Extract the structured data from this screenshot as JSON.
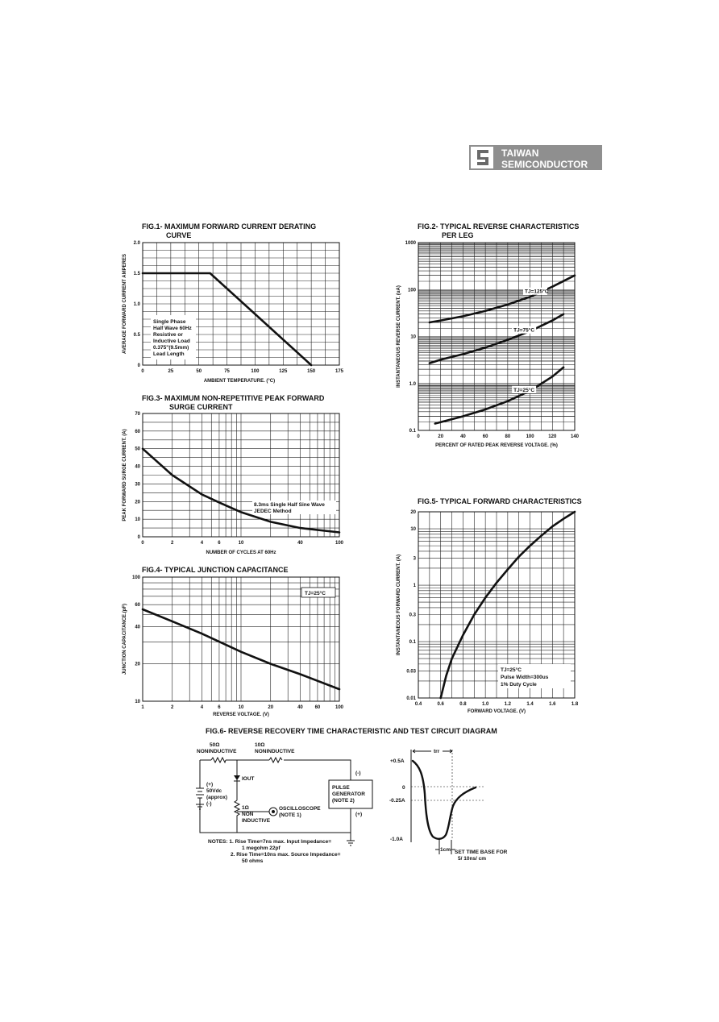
{
  "logo": {
    "line1": "TAIWAN",
    "line2": "SEMICONDUCTOR"
  },
  "fig1": {
    "title1": "FIG.1- MAXIMUM FORWARD CURRENT DERATING",
    "title2": "CURVE",
    "note": [
      "Single Phase",
      "Half Wave 60Hz",
      "Resistive or",
      "Inductive Load",
      "0.375\"(9.5mm)",
      "Lead Length"
    ]
  },
  "fig2": {
    "title1": "FIG.2- TYPICAL REVERSE CHARACTERISTICS",
    "title2": "PER LEG"
  },
  "fig3": {
    "title1": "FIG.3- MAXIMUM NON-REPETITIVE PEAK FORWARD",
    "title2": "SURGE CURRENT",
    "note": [
      "8.3ms Single Half Sine Wave",
      "JEDEC Method"
    ]
  },
  "fig4": {
    "title": "FIG.4- TYPICAL JUNCTION CAPACITANCE",
    "note": "TJ=25°C"
  },
  "fig5": {
    "title": "FIG.5- TYPICAL FORWARD CHARACTERISTICS",
    "note": [
      "TJ=25°C",
      "Pulse Width=300us",
      "1% Duty Cycle"
    ]
  },
  "fig6": {
    "title": "FIG.6- REVERSE RECOVERY TIME CHARACTERISTIC AND TEST CIRCUIT DIAGRAM",
    "r1": [
      "50Ω",
      "NONINDUCTIVE"
    ],
    "r2": [
      "10Ω",
      "NONINDUCTIVE"
    ],
    "iout": "IOUT",
    "supply": [
      "(+)",
      "50Vdc",
      "(approx)",
      "(-)"
    ],
    "r3": [
      "1Ω",
      "NON",
      "INDUCTIVE"
    ],
    "scope": [
      "OSCILLOSCOPE",
      "(NOTE 1)"
    ],
    "pulse": [
      "PULSE",
      "GENERATOR",
      "(NOTE 2)"
    ],
    "pulse_minus": "(-)",
    "pulse_plus": "(+)",
    "notes": [
      "NOTES: 1. Rise Time=7ns max. Input Impedance=",
      "1 megohm 22pf",
      "2. Rise Time=10ns max. Source Impedance=",
      "50 ohms"
    ],
    "wave": {
      "trr": "trr",
      "y_labels": [
        "+0.5A",
        "0",
        "-0.25A",
        "-1.0A"
      ],
      "cm": "1cm",
      "timebase": [
        "SET TIME BASE FOR",
        "5/ 10ns/ cm"
      ]
    }
  },
  "chart_data": [
    {
      "type": "line",
      "title": "FIG.1- MAXIMUM FORWARD CURRENT DERATING CURVE",
      "xlabel": "AMBIENT TEMPERATURE. (°C)",
      "ylabel": "AVERAGE FORWARD CURRENT AMPERES",
      "xlim": [
        0,
        175
      ],
      "ylim": [
        0,
        2.0
      ],
      "x_ticks": [
        "0",
        "25",
        "50",
        "75",
        "100",
        "125",
        "150",
        "175"
      ],
      "y_ticks": [
        "0",
        "0.5",
        "1.0",
        "1.5",
        "2.0"
      ],
      "grid": true,
      "series": [
        {
          "x": [
            0,
            60,
            150
          ],
          "y": [
            1.5,
            1.5,
            0
          ]
        }
      ]
    },
    {
      "type": "line",
      "title": "FIG.2- TYPICAL REVERSE CHARACTERISTICS PER LEG",
      "xlabel": "PERCENT OF RATED PEAK REVERSE VOLTAGE. (%)",
      "ylabel": "INSTANTANEOUS REVERSE CURRENT. (uA)",
      "xlim": [
        0,
        140
      ],
      "ylim": [
        0.1,
        1000
      ],
      "yscale": "log",
      "x_ticks": [
        "0",
        "20",
        "40",
        "60",
        "80",
        "100",
        "120",
        "140"
      ],
      "y_ticks": [
        "0.1",
        "1.0",
        "10",
        "100",
        "1000"
      ],
      "grid": true,
      "series": [
        {
          "name": "TJ=125°C",
          "x": [
            10,
            20,
            40,
            60,
            80,
            100,
            120,
            140
          ],
          "y": [
            20,
            22,
            27,
            35,
            48,
            70,
            115,
            200
          ]
        },
        {
          "name": "TJ=75°C",
          "x": [
            10,
            20,
            40,
            60,
            80,
            100,
            120,
            130
          ],
          "y": [
            2.7,
            3.2,
            4.2,
            5.8,
            8.5,
            13,
            22,
            30
          ]
        },
        {
          "name": "TJ=25°C",
          "x": [
            15,
            20,
            40,
            60,
            80,
            100,
            120,
            130
          ],
          "y": [
            0.14,
            0.15,
            0.2,
            0.28,
            0.42,
            0.7,
            1.4,
            2.2
          ]
        }
      ]
    },
    {
      "type": "line",
      "title": "FIG.3- MAXIMUM NON-REPETITIVE PEAK FORWARD SURGE CURRENT",
      "xlabel": "NUMBER OF CYCLES AT 60Hz",
      "ylabel": "PEAK FORWARD SURGE CURRENT. (A)",
      "xlim": [
        1,
        100
      ],
      "ylim": [
        0,
        70
      ],
      "xscale": "log",
      "x_ticks": [
        "0",
        "2",
        "4",
        "6",
        "10",
        "40",
        "100"
      ],
      "y_ticks": [
        "0",
        "10",
        "20",
        "30",
        "40",
        "50",
        "60",
        "70"
      ],
      "grid": true,
      "series": [
        {
          "x": [
            1,
            2,
            4,
            6,
            10,
            20,
            40,
            100
          ],
          "y": [
            50,
            35,
            24,
            19.5,
            14,
            8.5,
            5,
            2.5
          ]
        }
      ]
    },
    {
      "type": "line",
      "title": "FIG.4- TYPICAL JUNCTION CAPACITANCE",
      "xlabel": "REVERSE VOLTAGE. (V)",
      "ylabel": "JUNCTION CAPACITANCE.(pF)",
      "xlim": [
        1,
        100
      ],
      "ylim": [
        10,
        100
      ],
      "xscale": "log",
      "yscale": "log",
      "x_ticks": [
        "1",
        "2",
        "4",
        "6",
        "10",
        "20",
        "40",
        "60",
        "100"
      ],
      "y_ticks": [
        "10",
        "20",
        "40",
        "60",
        "100"
      ],
      "grid": true,
      "series": [
        {
          "x": [
            1,
            2,
            4,
            10,
            20,
            40,
            100
          ],
          "y": [
            55,
            44,
            35,
            25,
            20,
            16.5,
            12.5
          ]
        }
      ]
    },
    {
      "type": "line",
      "title": "FIG.5- TYPICAL FORWARD CHARACTERISTICS",
      "xlabel": "FORWARD VOLTAGE. (V)",
      "ylabel": "INSTANTANEOUS FORWARD CURRENT. (A)",
      "xlim": [
        0.4,
        1.8
      ],
      "ylim": [
        0.01,
        20
      ],
      "yscale": "log",
      "x_ticks": [
        "0.4",
        "0.6",
        "0.8",
        "1.0",
        "1.2",
        "1.4",
        "1.6",
        "1.8"
      ],
      "y_ticks": [
        "0.01",
        "0.03",
        "0.1",
        "0.3",
        "1",
        "3",
        "10",
        "20"
      ],
      "grid": true,
      "series": [
        {
          "x": [
            0.6,
            0.65,
            0.7,
            0.8,
            0.9,
            1.0,
            1.1,
            1.2,
            1.3,
            1.4,
            1.5,
            1.6,
            1.7,
            1.8
          ],
          "y": [
            0.01,
            0.025,
            0.05,
            0.13,
            0.3,
            0.6,
            1.1,
            1.9,
            3.2,
            5,
            7.5,
            11,
            15,
            20
          ]
        }
      ]
    }
  ]
}
